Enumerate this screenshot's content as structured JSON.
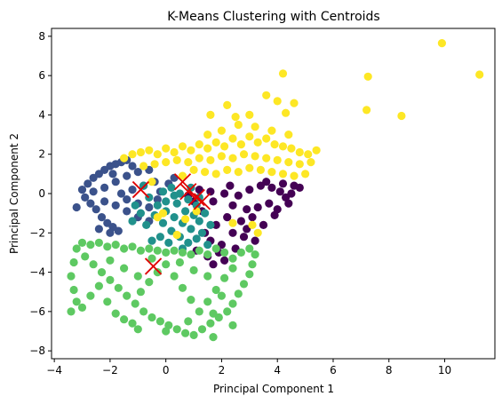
{
  "chart_data": {
    "type": "scatter",
    "title": "K-Means Clustering with Centroids",
    "xlabel": "Principal Component 1",
    "ylabel": "Principal Component 2",
    "xlim": [
      -4.1,
      11.8
    ],
    "ylim": [
      -8.4,
      8.4
    ],
    "xticks": [
      -4,
      -2,
      0,
      2,
      4,
      6,
      8,
      10
    ],
    "yticks": [
      -8,
      -6,
      -4,
      -2,
      0,
      2,
      4,
      6,
      8
    ],
    "tick_labels_x": [
      "−4",
      "−2",
      "0",
      "2",
      "4",
      "6",
      "8",
      "10"
    ],
    "tick_labels_y": [
      "−8",
      "−6",
      "−4",
      "−2",
      "0",
      "2",
      "4",
      "6",
      "8"
    ],
    "grid": false,
    "legend": "none",
    "clusters": [
      {
        "color": "#440154",
        "points": [
          [
            1.2,
            0.2
          ],
          [
            1.6,
            0.1
          ],
          [
            2.1,
            0.0
          ],
          [
            2.6,
            -0.1
          ],
          [
            3.0,
            0.2
          ],
          [
            3.4,
            0.4
          ],
          [
            3.8,
            0.3
          ],
          [
            4.1,
            0.1
          ],
          [
            4.3,
            -0.2
          ],
          [
            4.5,
            0.0
          ],
          [
            4.6,
            0.4
          ],
          [
            4.8,
            0.3
          ],
          [
            2.4,
            -0.6
          ],
          [
            2.9,
            -0.8
          ],
          [
            3.3,
            -0.7
          ],
          [
            3.7,
            -0.5
          ],
          [
            4.0,
            -0.8
          ],
          [
            2.2,
            -1.2
          ],
          [
            2.7,
            -1.4
          ],
          [
            3.1,
            -1.2
          ],
          [
            3.5,
            -1.6
          ],
          [
            2.4,
            -2.0
          ],
          [
            2.8,
            -2.2
          ],
          [
            3.2,
            -2.4
          ],
          [
            2.0,
            -2.6
          ],
          [
            2.5,
            -2.8
          ],
          [
            1.6,
            -2.4
          ],
          [
            1.1,
            -2.9
          ],
          [
            1.5,
            -3.2
          ],
          [
            1.9,
            -3.0
          ],
          [
            1.7,
            -0.4
          ],
          [
            1.3,
            -0.9
          ],
          [
            1.8,
            -1.6
          ],
          [
            3.6,
            0.6
          ],
          [
            4.2,
            0.5
          ],
          [
            2.3,
            0.4
          ],
          [
            3.9,
            -1.1
          ],
          [
            1.0,
            -0.4
          ],
          [
            0.8,
            -0.1
          ],
          [
            1.4,
            -2.0
          ],
          [
            2.9,
            -1.8
          ],
          [
            4.4,
            -0.5
          ],
          [
            2.1,
            -3.4
          ],
          [
            1.7,
            -3.6
          ]
        ]
      },
      {
        "color": "#3b528b",
        "points": [
          [
            -3.0,
            0.2
          ],
          [
            -2.8,
            0.5
          ],
          [
            -2.6,
            0.8
          ],
          [
            -2.4,
            1.0
          ],
          [
            -2.2,
            1.2
          ],
          [
            -2.0,
            1.4
          ],
          [
            -1.8,
            1.5
          ],
          [
            -1.6,
            1.6
          ],
          [
            -1.4,
            1.7
          ],
          [
            -2.9,
            -0.2
          ],
          [
            -2.7,
            -0.5
          ],
          [
            -2.5,
            -0.8
          ],
          [
            -2.3,
            -1.2
          ],
          [
            -2.1,
            -1.5
          ],
          [
            -1.9,
            -1.7
          ],
          [
            -1.7,
            -1.9
          ],
          [
            -2.6,
            0.1
          ],
          [
            -2.2,
            0.3
          ],
          [
            -1.8,
            0.6
          ],
          [
            -1.4,
            0.9
          ],
          [
            -1.0,
            1.1
          ],
          [
            -0.6,
            1.2
          ],
          [
            -2.2,
            -0.4
          ],
          [
            -1.8,
            -0.6
          ],
          [
            -1.4,
            -0.9
          ],
          [
            -1.0,
            -1.2
          ],
          [
            -0.6,
            -1.4
          ],
          [
            -1.6,
            0.0
          ],
          [
            -1.2,
            0.2
          ],
          [
            -0.8,
            0.4
          ],
          [
            -0.4,
            0.6
          ],
          [
            -1.4,
            -0.3
          ],
          [
            -1.0,
            -0.5
          ],
          [
            -0.6,
            -0.7
          ],
          [
            -0.2,
            0.1
          ],
          [
            0.1,
            0.5
          ],
          [
            -3.2,
            -0.7
          ],
          [
            -2.4,
            -1.8
          ],
          [
            -2.0,
            -2.0
          ],
          [
            -1.2,
            1.4
          ],
          [
            -0.3,
            -0.3
          ],
          [
            0.3,
            0.8
          ],
          [
            -1.9,
            1.0
          ]
        ]
      },
      {
        "color": "#21918c",
        "points": [
          [
            -0.6,
            -0.2
          ],
          [
            -0.3,
            -0.6
          ],
          [
            0.0,
            -0.9
          ],
          [
            0.3,
            -1.2
          ],
          [
            0.6,
            -1.5
          ],
          [
            0.9,
            -1.8
          ],
          [
            1.2,
            -1.4
          ],
          [
            1.4,
            -1.0
          ],
          [
            1.1,
            -0.6
          ],
          [
            0.8,
            -0.3
          ],
          [
            0.5,
            0.0
          ],
          [
            0.2,
            0.3
          ],
          [
            -0.1,
            0.1
          ],
          [
            -0.4,
            -1.1
          ],
          [
            -0.1,
            -1.5
          ],
          [
            0.2,
            -1.9
          ],
          [
            0.5,
            -2.2
          ],
          [
            0.8,
            -2.5
          ],
          [
            1.1,
            -2.3
          ],
          [
            -0.7,
            -1.6
          ],
          [
            -0.9,
            -1.0
          ],
          [
            -1.1,
            -0.6
          ],
          [
            0.4,
            -0.5
          ],
          [
            0.7,
            -0.9
          ],
          [
            1.0,
            -1.1
          ],
          [
            1.3,
            -2.0
          ],
          [
            -0.2,
            -2.2
          ],
          [
            0.1,
            -2.5
          ],
          [
            -0.5,
            -2.4
          ],
          [
            0.6,
            -2.8
          ],
          [
            1.5,
            -2.6
          ],
          [
            0.9,
            0.3
          ],
          [
            1.2,
            -0.2
          ],
          [
            -0.8,
            0.4
          ],
          [
            0.3,
            -0.1
          ],
          [
            0.0,
            -0.4
          ],
          [
            1.6,
            -1.6
          ],
          [
            -1.2,
            -1.4
          ]
        ]
      },
      {
        "color": "#5ec962",
        "points": [
          [
            -3.2,
            -2.8
          ],
          [
            -2.9,
            -3.2
          ],
          [
            -2.6,
            -3.6
          ],
          [
            -2.3,
            -4.0
          ],
          [
            -2.0,
            -4.4
          ],
          [
            -1.7,
            -4.8
          ],
          [
            -1.4,
            -5.2
          ],
          [
            -1.1,
            -5.6
          ],
          [
            -0.8,
            -6.0
          ],
          [
            -0.5,
            -6.3
          ],
          [
            -0.2,
            -6.5
          ],
          [
            0.1,
            -6.7
          ],
          [
            0.4,
            -6.9
          ],
          [
            0.7,
            -7.1
          ],
          [
            1.0,
            -7.2
          ],
          [
            1.3,
            -6.9
          ],
          [
            1.6,
            -6.6
          ],
          [
            1.9,
            -6.3
          ],
          [
            2.2,
            -6.0
          ],
          [
            2.4,
            -5.6
          ],
          [
            2.6,
            -5.1
          ],
          [
            2.8,
            -4.6
          ],
          [
            3.0,
            -4.1
          ],
          [
            3.1,
            -3.6
          ],
          [
            3.2,
            -3.1
          ],
          [
            3.0,
            -2.8
          ],
          [
            2.7,
            -3.0
          ],
          [
            2.4,
            -3.3
          ],
          [
            2.1,
            -3.0
          ],
          [
            1.8,
            -2.8
          ],
          [
            1.5,
            -3.1
          ],
          [
            1.2,
            -2.9
          ],
          [
            0.9,
            -3.1
          ],
          [
            0.6,
            -3.0
          ],
          [
            0.3,
            -2.9
          ],
          [
            0.0,
            -3.0
          ],
          [
            -0.3,
            -2.9
          ],
          [
            -0.6,
            -2.8
          ],
          [
            -0.9,
            -2.9
          ],
          [
            -1.2,
            -2.7
          ],
          [
            -1.5,
            -2.8
          ],
          [
            -1.8,
            -2.6
          ],
          [
            -2.1,
            -2.7
          ],
          [
            -2.4,
            -2.5
          ],
          [
            -2.7,
            -2.6
          ],
          [
            -3.0,
            -2.5
          ],
          [
            -3.3,
            -3.5
          ],
          [
            -3.4,
            -4.2
          ],
          [
            -3.3,
            -4.9
          ],
          [
            -3.2,
            -5.5
          ],
          [
            -3.4,
            -6.0
          ],
          [
            -3.0,
            -5.8
          ],
          [
            -2.7,
            -5.2
          ],
          [
            -2.4,
            -4.7
          ],
          [
            -2.1,
            -5.5
          ],
          [
            -1.8,
            -6.1
          ],
          [
            -1.5,
            -6.4
          ],
          [
            -1.2,
            -6.6
          ],
          [
            -0.9,
            -5.0
          ],
          [
            -0.6,
            -4.5
          ],
          [
            -0.3,
            -4.0
          ],
          [
            0.0,
            -3.6
          ],
          [
            0.3,
            -4.2
          ],
          [
            0.6,
            -4.8
          ],
          [
            0.9,
            -5.4
          ],
          [
            1.2,
            -6.0
          ],
          [
            1.5,
            -5.5
          ],
          [
            1.8,
            -4.9
          ],
          [
            2.1,
            -4.3
          ],
          [
            2.4,
            -3.8
          ],
          [
            -2.0,
            -3.4
          ],
          [
            -1.5,
            -3.8
          ],
          [
            -1.0,
            -4.2
          ],
          [
            -0.5,
            -3.3
          ],
          [
            0.5,
            -3.5
          ],
          [
            1.0,
            -3.9
          ],
          [
            1.5,
            -4.2
          ],
          [
            2.0,
            -5.2
          ],
          [
            -1.0,
            -6.9
          ],
          [
            0.0,
            -7.0
          ],
          [
            0.8,
            -6.5
          ],
          [
            1.7,
            -6.1
          ],
          [
            2.4,
            -6.7
          ],
          [
            1.7,
            -7.3
          ]
        ]
      },
      {
        "color": "#fde725",
        "points": [
          [
            -1.5,
            1.8
          ],
          [
            -1.2,
            2.0
          ],
          [
            -0.9,
            2.1
          ],
          [
            -0.6,
            2.2
          ],
          [
            -0.3,
            2.0
          ],
          [
            0.0,
            2.3
          ],
          [
            0.3,
            2.1
          ],
          [
            0.6,
            2.4
          ],
          [
            0.9,
            2.2
          ],
          [
            1.2,
            2.5
          ],
          [
            1.5,
            2.3
          ],
          [
            1.8,
            2.6
          ],
          [
            2.1,
            2.4
          ],
          [
            2.4,
            2.8
          ],
          [
            2.7,
            2.5
          ],
          [
            3.0,
            2.9
          ],
          [
            3.3,
            2.6
          ],
          [
            3.6,
            2.8
          ],
          [
            3.9,
            2.5
          ],
          [
            4.2,
            2.4
          ],
          [
            4.5,
            2.3
          ],
          [
            4.8,
            2.1
          ],
          [
            5.1,
            2.0
          ],
          [
            5.4,
            2.2
          ],
          [
            -0.8,
            1.4
          ],
          [
            -0.4,
            1.5
          ],
          [
            0.0,
            1.6
          ],
          [
            0.4,
            1.7
          ],
          [
            0.8,
            1.6
          ],
          [
            1.2,
            1.8
          ],
          [
            1.6,
            1.7
          ],
          [
            2.0,
            1.9
          ],
          [
            2.4,
            1.8
          ],
          [
            2.8,
            2.0
          ],
          [
            3.2,
            1.9
          ],
          [
            3.6,
            1.8
          ],
          [
            4.0,
            1.7
          ],
          [
            4.4,
            1.6
          ],
          [
            4.8,
            1.5
          ],
          [
            1.0,
            1.2
          ],
          [
            1.4,
            1.1
          ],
          [
            1.8,
            1.0
          ],
          [
            2.2,
            1.2
          ],
          [
            2.6,
            1.1
          ],
          [
            3.0,
            1.3
          ],
          [
            3.4,
            1.2
          ],
          [
            3.8,
            1.1
          ],
          [
            4.2,
            1.0
          ],
          [
            4.6,
            0.9
          ],
          [
            5.0,
            1.0
          ],
          [
            0.6,
            0.9
          ],
          [
            2.0,
            3.2
          ],
          [
            2.6,
            3.5
          ],
          [
            3.2,
            3.4
          ],
          [
            3.8,
            3.2
          ],
          [
            4.4,
            3.0
          ],
          [
            1.5,
            3.0
          ],
          [
            2.2,
            4.5
          ],
          [
            3.6,
            5.0
          ],
          [
            4.0,
            4.7
          ],
          [
            4.6,
            4.6
          ],
          [
            3.0,
            4.0
          ],
          [
            2.5,
            3.9
          ],
          [
            4.3,
            4.1
          ],
          [
            1.6,
            4.0
          ],
          [
            4.2,
            6.1
          ],
          [
            7.25,
            5.95
          ],
          [
            7.2,
            4.25
          ],
          [
            8.45,
            3.95
          ],
          [
            9.9,
            7.65
          ],
          [
            11.25,
            6.05
          ],
          [
            -0.3,
            -1.2
          ],
          [
            -0.1,
            -1.0
          ],
          [
            0.7,
            -1.3
          ],
          [
            1.1,
            -0.9
          ],
          [
            2.4,
            -1.5
          ],
          [
            3.1,
            -1.6
          ],
          [
            3.3,
            -2.0
          ],
          [
            0.4,
            -2.1
          ],
          [
            -0.5,
            0.6
          ],
          [
            5.2,
            1.6
          ]
        ]
      }
    ],
    "centroids": {
      "color": "#e00000",
      "marker": "x",
      "points": [
        [
          -0.9,
          0.2
        ],
        [
          0.6,
          0.6
        ],
        [
          0.8,
          0.1
        ],
        [
          1.1,
          -0.2
        ],
        [
          1.3,
          -0.4
        ],
        [
          -0.45,
          -3.7
        ]
      ]
    }
  }
}
